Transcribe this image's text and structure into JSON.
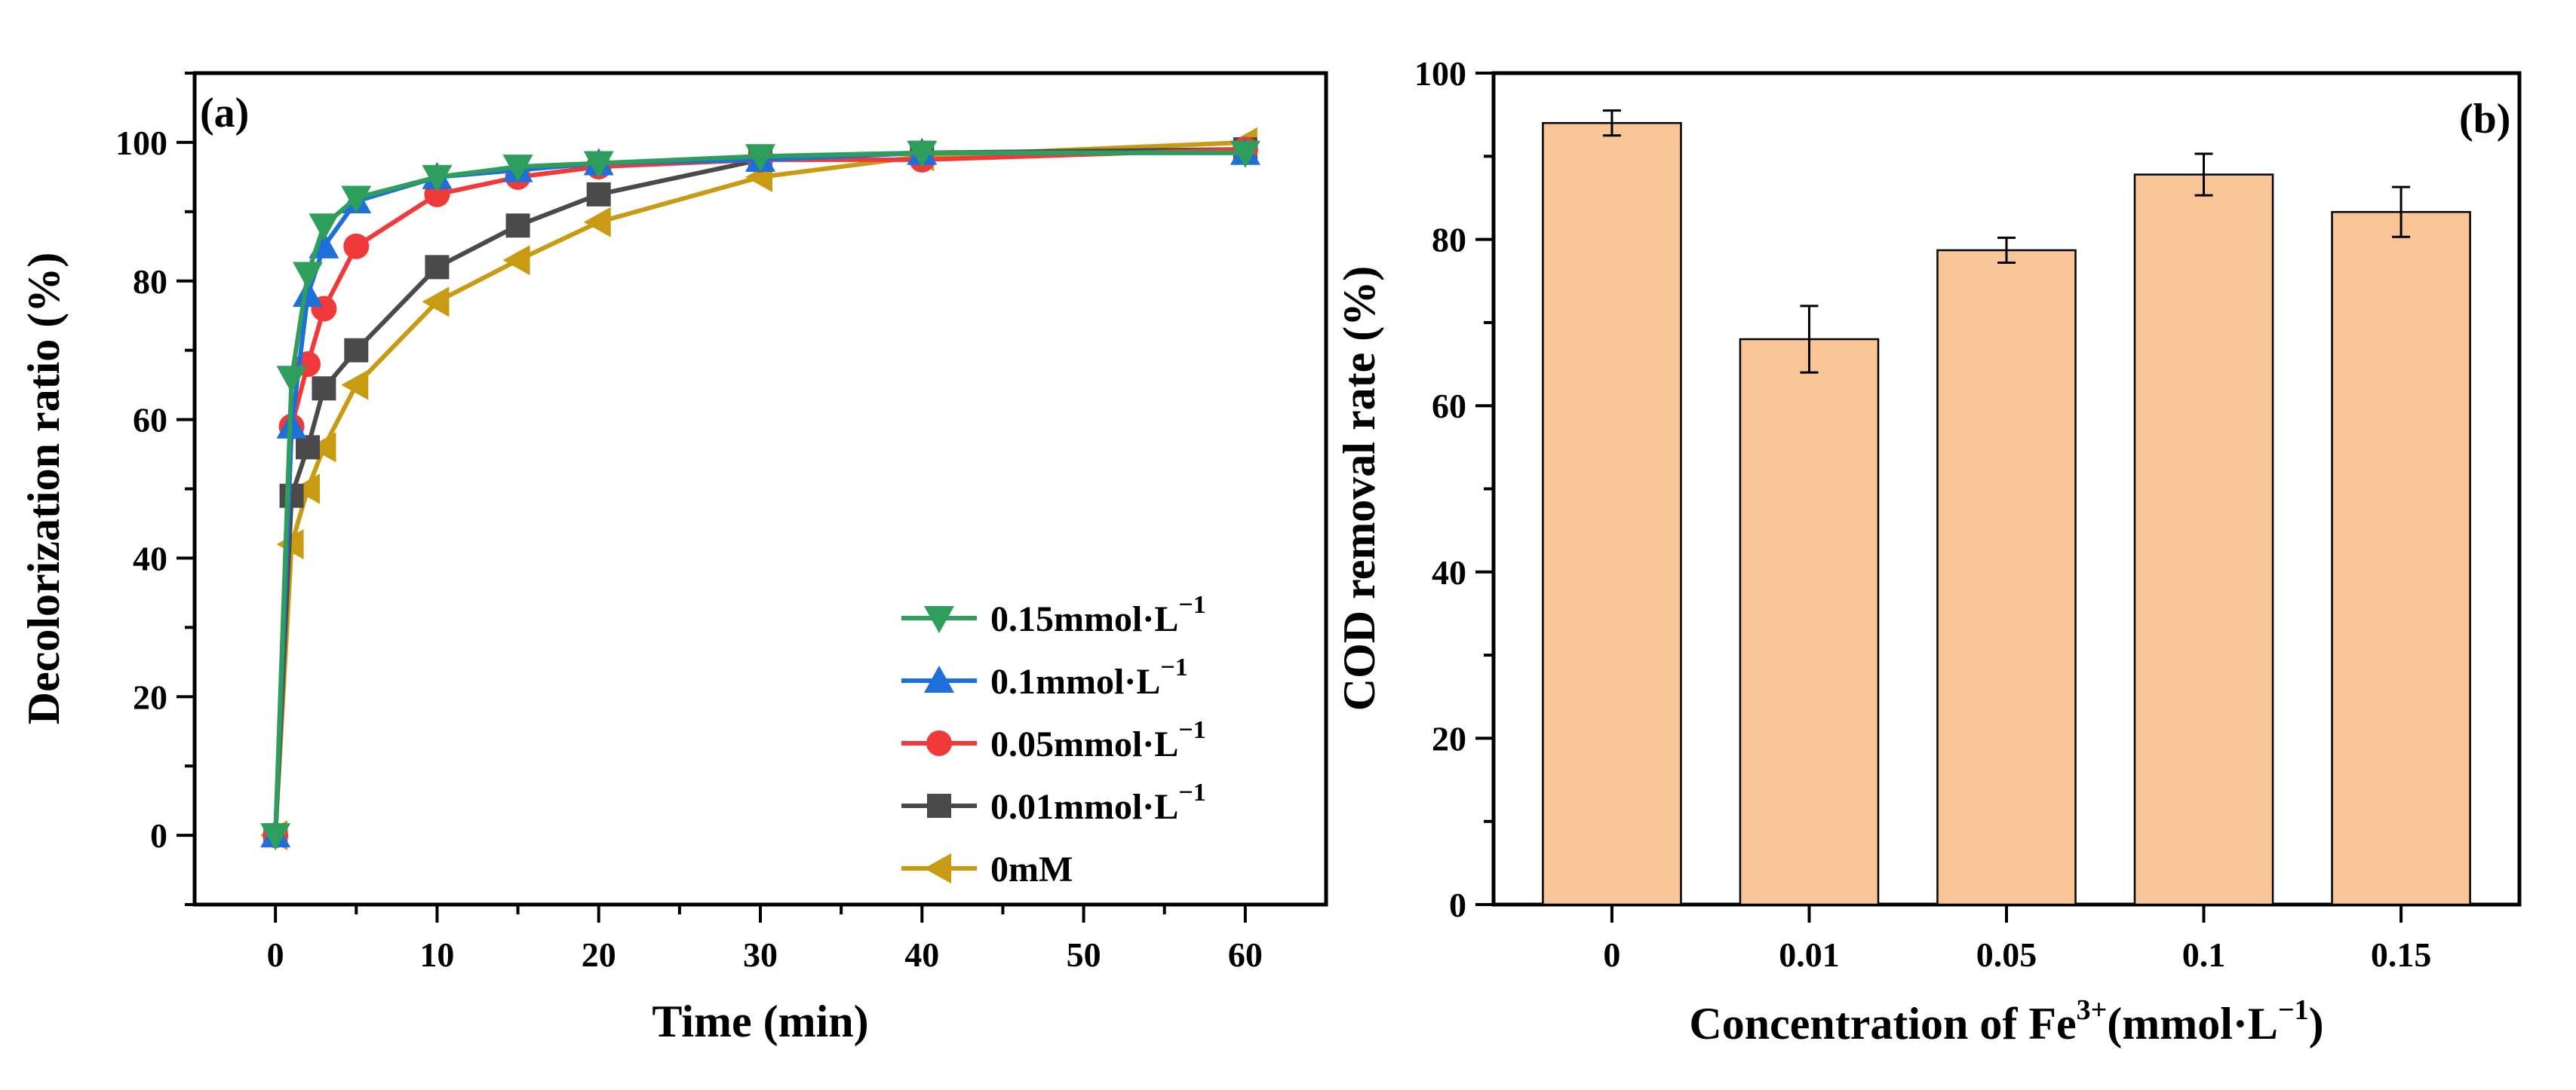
{
  "chart_data": [
    {
      "type": "line",
      "panel_label": "(a)",
      "xlabel": "Time (min)",
      "ylabel": "Decolorization ratio (%)",
      "xlim": [
        -5,
        65
      ],
      "ylim": [
        -10,
        110
      ],
      "xticks": [
        0,
        10,
        20,
        30,
        40,
        50,
        60
      ],
      "yticks": [
        0,
        20,
        40,
        60,
        80,
        100
      ],
      "legend_position": "bottom-right",
      "grid": false,
      "x": [
        0,
        1,
        2,
        3,
        5,
        10,
        15,
        20,
        30,
        40,
        60
      ],
      "series": [
        {
          "name": "0.15mmol·L",
          "sup": "−1",
          "color": "#2E9E5C",
          "marker": "triangle-down",
          "values": [
            0,
            66,
            81,
            88,
            92,
            95,
            96.5,
            97,
            98,
            98.5,
            98.5
          ]
        },
        {
          "name": "0.1mmol·L",
          "sup": "−1",
          "color": "#1F6FD8",
          "marker": "triangle-up",
          "values": [
            0,
            59,
            78,
            85,
            91.5,
            95,
            96,
            97,
            97.5,
            98.5,
            98.5
          ]
        },
        {
          "name": "0.05mmol·L",
          "sup": "−1",
          "color": "#F03A3A",
          "marker": "circle",
          "values": [
            0,
            59,
            68,
            76,
            85,
            92.5,
            95,
            96.5,
            97.5,
            97.5,
            99
          ]
        },
        {
          "name": "0.01mmol·L",
          "sup": "−1",
          "color": "#4A4A4A",
          "marker": "square",
          "values": [
            0,
            49,
            56,
            64.5,
            70,
            82,
            88,
            92.5,
            97.5,
            98.5,
            99
          ]
        },
        {
          "name": "0mM",
          "sup": "",
          "color": "#C89B12",
          "marker": "triangle-left",
          "values": [
            0,
            42,
            50,
            56,
            65,
            77,
            83,
            88.5,
            95,
            98,
            100
          ]
        }
      ]
    },
    {
      "type": "bar",
      "panel_label": "(b)",
      "xlabel": "Concentration of Fe",
      "xlabel_sup": "3+",
      "xlabel_tail": "(mmol·L",
      "xlabel_tail_sup": "−1",
      "xlabel_end": ")",
      "ylabel": "COD removal rate (%)",
      "ylim": [
        0,
        100
      ],
      "yticks": [
        0,
        20,
        40,
        60,
        80,
        100
      ],
      "categories": [
        "0",
        "0.01",
        "0.05",
        "0.1",
        "0.15"
      ],
      "values": [
        94,
        68,
        78.7,
        87.8,
        83.3
      ],
      "errors": [
        1.5,
        4,
        1.5,
        2.5,
        3
      ],
      "bar_color": "#F9C596"
    }
  ]
}
